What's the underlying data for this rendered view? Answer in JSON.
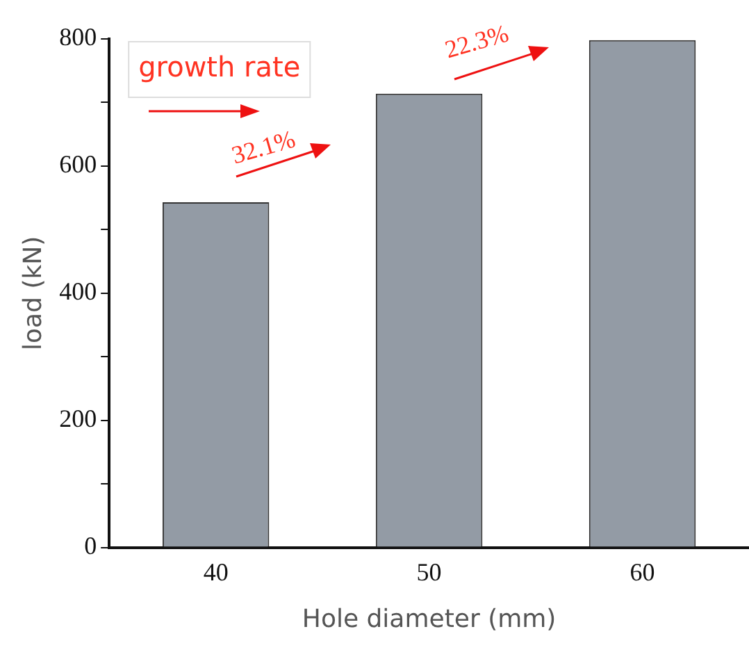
{
  "chart_data": {
    "type": "bar",
    "xlabel": "Hole diameter (mm)",
    "ylabel": "load (kN)",
    "categories": [
      "40",
      "50",
      "60"
    ],
    "values": [
      543,
      714,
      798
    ],
    "color": "#939ba5",
    "ylim": [
      0,
      800
    ],
    "yticks": [
      0,
      {
        "value": 100,
        "label": null
      },
      200,
      {
        "value": 300,
        "label": null
      },
      400,
      {
        "value": 500,
        "label": null
      },
      600,
      {
        "value": 700,
        "label": null
      },
      800
    ],
    "annotations": [
      "growth rate",
      "32.1%",
      "22.3%"
    ],
    "grid": false,
    "legend": false
  }
}
